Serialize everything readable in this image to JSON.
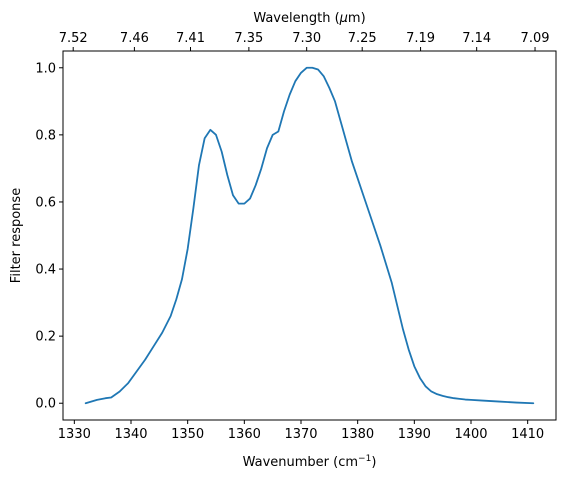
{
  "chart_data": {
    "type": "line",
    "xlabel": "Wavenumber (cm",
    "xlabel_sup": "−1",
    "xlabel_end": ")",
    "ylabel": "Filter response",
    "top_xlabel": "Wavelength (",
    "top_xlabel_mu": "μ",
    "top_xlabel_end": "m)",
    "xlim": [
      1328.0,
      1415.0
    ],
    "ylim": [
      -0.05,
      1.05
    ],
    "x_ticks": [
      1330,
      1340,
      1350,
      1360,
      1370,
      1380,
      1390,
      1400,
      1410
    ],
    "y_ticks": [
      "0.0",
      "0.2",
      "0.4",
      "0.6",
      "0.8",
      "1.0"
    ],
    "top_ticks": [
      {
        "wavenumber": 1329.8,
        "label": "7.52"
      },
      {
        "wavenumber": 1340.6,
        "label": "7.46"
      },
      {
        "wavenumber": 1350.5,
        "label": "7.41"
      },
      {
        "wavenumber": 1360.8,
        "label": "7.35"
      },
      {
        "wavenumber": 1371.0,
        "label": "7.30"
      },
      {
        "wavenumber": 1380.8,
        "label": "7.25"
      },
      {
        "wavenumber": 1391.1,
        "label": "7.19"
      },
      {
        "wavenumber": 1401.0,
        "label": "7.14"
      },
      {
        "wavenumber": 1411.3,
        "label": "7.09"
      }
    ],
    "grid": false,
    "line_color": "#1f77b4",
    "series": [
      {
        "x": [
          1332,
          1334,
          1335.5,
          1336.5,
          1338,
          1339.5,
          1341,
          1342.5,
          1344,
          1345.5,
          1347,
          1348,
          1349,
          1350,
          1351,
          1352,
          1353,
          1354,
          1355,
          1356,
          1357,
          1358,
          1359,
          1360,
          1361,
          1362,
          1363,
          1364,
          1365,
          1366,
          1367,
          1368,
          1369,
          1370,
          1371,
          1372,
          1373,
          1374,
          1375,
          1376,
          1377,
          1378,
          1379,
          1380,
          1381,
          1382,
          1384,
          1386,
          1387,
          1388,
          1389,
          1390,
          1391,
          1392,
          1393,
          1394,
          1395,
          1396,
          1397,
          1398,
          1399,
          1400,
          1402,
          1405,
          1408,
          1411
        ],
        "y": [
          0.0,
          0.01,
          0.015,
          0.017,
          0.035,
          0.06,
          0.095,
          0.13,
          0.17,
          0.21,
          0.26,
          0.31,
          0.37,
          0.46,
          0.58,
          0.71,
          0.79,
          0.815,
          0.8,
          0.75,
          0.68,
          0.62,
          0.595,
          0.595,
          0.61,
          0.65,
          0.7,
          0.76,
          0.8,
          0.81,
          0.87,
          0.92,
          0.96,
          0.985,
          1.0,
          1.0,
          0.995,
          0.975,
          0.94,
          0.9,
          0.84,
          0.78,
          0.72,
          0.67,
          0.62,
          0.57,
          0.47,
          0.36,
          0.29,
          0.22,
          0.16,
          0.11,
          0.075,
          0.05,
          0.035,
          0.027,
          0.022,
          0.018,
          0.015,
          0.013,
          0.011,
          0.01,
          0.008,
          0.005,
          0.002,
          0.0
        ]
      }
    ]
  }
}
